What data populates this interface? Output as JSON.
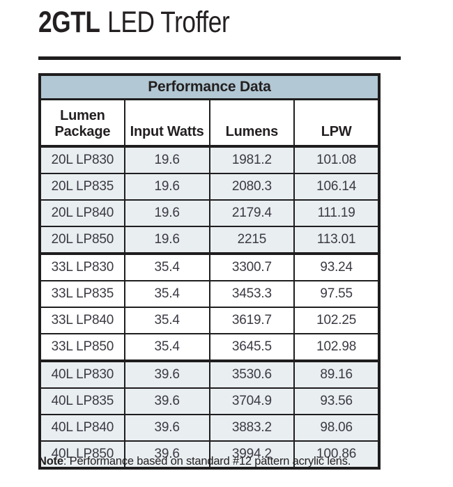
{
  "page": {
    "title_model": "2GTL",
    "title_product": "LED Troffer"
  },
  "table": {
    "title": "Performance Data",
    "columns": [
      "Lumen Package",
      "Input Watts",
      "Lumens",
      "LPW"
    ],
    "rows": [
      {
        "group": "20L",
        "shaded": true,
        "cells": [
          "20L LP830",
          "19.6",
          "1981.2",
          "101.08"
        ]
      },
      {
        "group": "20L",
        "shaded": true,
        "cells": [
          "20L LP835",
          "19.6",
          "2080.3",
          "106.14"
        ]
      },
      {
        "group": "20L",
        "shaded": true,
        "cells": [
          "20L LP840",
          "19.6",
          "2179.4",
          "111.19"
        ]
      },
      {
        "group": "20L",
        "shaded": true,
        "cells": [
          "20L LP850",
          "19.6",
          "2215",
          "113.01"
        ]
      },
      {
        "group": "33L",
        "shaded": false,
        "cells": [
          "33L LP830",
          "35.4",
          "3300.7",
          "93.24"
        ]
      },
      {
        "group": "33L",
        "shaded": false,
        "cells": [
          "33L LP835",
          "35.4",
          "3453.3",
          "97.55"
        ]
      },
      {
        "group": "33L",
        "shaded": false,
        "cells": [
          "33L LP840",
          "35.4",
          "3619.7",
          "102.25"
        ]
      },
      {
        "group": "33L",
        "shaded": false,
        "cells": [
          "33L LP850",
          "35.4",
          "3645.5",
          "102.98"
        ]
      },
      {
        "group": "40L",
        "shaded": true,
        "cells": [
          "40L LP830",
          "39.6",
          "3530.6",
          "89.16"
        ]
      },
      {
        "group": "40L",
        "shaded": true,
        "cells": [
          "40L LP835",
          "39.6",
          "3704.9",
          "93.56"
        ]
      },
      {
        "group": "40L",
        "shaded": true,
        "cells": [
          "40L LP840",
          "39.6",
          "3883.2",
          "98.06"
        ]
      },
      {
        "group": "40L",
        "shaded": true,
        "cells": [
          "40L LP850",
          "39.6",
          "3994.2",
          "100.86"
        ]
      }
    ]
  },
  "note": {
    "label": "Note",
    "rest": ": Performance based on standard #12 pattern acrylic lens."
  },
  "colors": {
    "table_header_fill": "#b2c8d4",
    "row_alt_fill": "#e9eef1",
    "border": "#1f1d1e",
    "heading_text": "#231f20",
    "data_text": "#3b3a43"
  }
}
